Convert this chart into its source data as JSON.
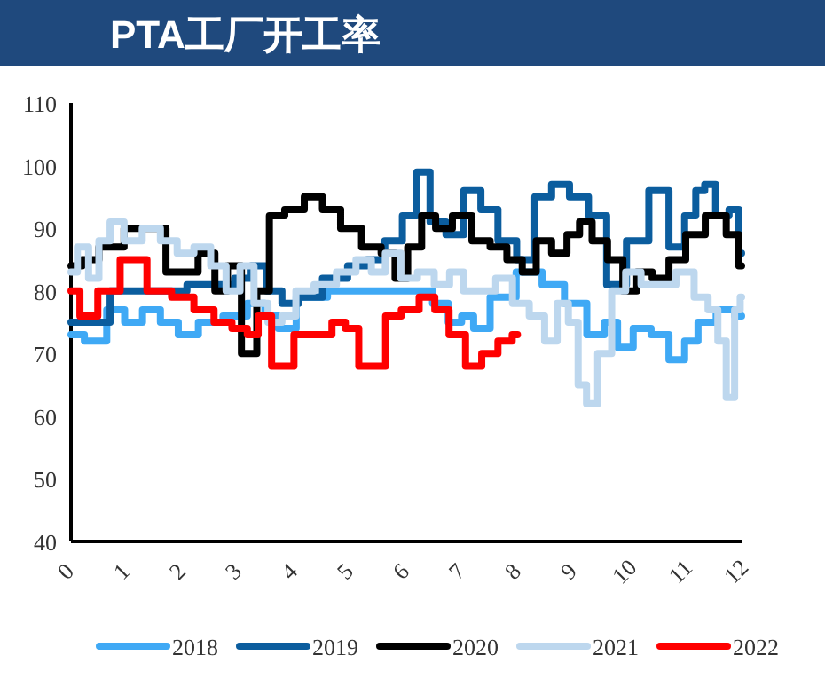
{
  "chart_data": {
    "type": "step",
    "title": "PTA工厂开工率",
    "xlim": [
      0,
      12
    ],
    "xticks": [
      0,
      1,
      2,
      3,
      4,
      5,
      6,
      7,
      8,
      9,
      10,
      11,
      12
    ],
    "ylim": [
      40,
      110
    ],
    "yticks": [
      40,
      50,
      60,
      70,
      80,
      90,
      100,
      110
    ],
    "grid": false,
    "legend": "bottom",
    "series": [
      {
        "name": "2018",
        "color": "#3fa9f5",
        "x": [
          0,
          0.48,
          0.8,
          1.12,
          1.44,
          1.76,
          2.08,
          2.48,
          2.96,
          3.35,
          3.59,
          3.83,
          4.23,
          4.95,
          5.75,
          6.31,
          6.63,
          6.87,
          7.11,
          7.3,
          7.7,
          8.23,
          8.63,
          9.03,
          9.43,
          9.66,
          9.9,
          10.22,
          10.54,
          10.86,
          11.1,
          11.34,
          11.75,
          12
        ],
        "values": [
          73,
          72,
          77,
          75,
          77,
          75,
          73,
          75,
          76,
          78,
          76,
          74,
          79,
          80,
          80,
          80,
          78,
          75,
          76,
          74,
          79,
          83,
          81,
          78,
          73,
          75,
          71,
          74,
          73,
          69,
          72,
          75,
          77,
          76
        ]
      },
      {
        "name": "2019",
        "color": "#0b5d9e",
        "x": [
          0,
          1.4,
          2.75,
          3.1,
          3.35,
          3.65,
          3.9,
          4.25,
          4.75,
          5.15,
          5.45,
          5.78,
          6.08,
          6.3,
          6.55,
          6.87,
          7.19,
          7.48,
          7.8,
          8.15,
          8.45,
          8.75,
          9.09,
          9.43,
          9.74,
          10.14,
          10.54,
          10.86,
          11.1,
          11.26,
          11.42,
          11.65,
          11.9,
          12
        ],
        "values": [
          75,
          80,
          81,
          82,
          84,
          80,
          78,
          79,
          82,
          84,
          85,
          88,
          92,
          99,
          91,
          89,
          96,
          93,
          88,
          85,
          95,
          97,
          95,
          92,
          81,
          88,
          96,
          87,
          92,
          96,
          97,
          92,
          93,
          86
        ]
      },
      {
        "name": "2020",
        "color": "#000000",
        "x": [
          0,
          0.4,
          0.6,
          1.3,
          2.1,
          2.45,
          2.7,
          2.9,
          3.2,
          3.45,
          3.65,
          4.0,
          4.35,
          4.65,
          5.0,
          5.4,
          5.7,
          5.9,
          6.15,
          6.4,
          6.65,
          7.0,
          7.35,
          7.65,
          7.95,
          8.2,
          8.45,
          8.75,
          9.0,
          9.2,
          9.45,
          9.75,
          10.0,
          10.25,
          10.55,
          10.85,
          11.15,
          11.55,
          11.9,
          12
        ],
        "values": [
          84,
          85,
          87,
          90,
          83,
          86,
          80,
          84,
          70,
          80,
          92,
          93,
          95,
          93,
          90,
          87,
          86,
          82,
          87,
          92,
          90,
          92,
          88,
          87,
          85,
          83,
          88,
          86,
          89,
          91,
          88,
          85,
          80,
          83,
          82,
          85,
          89,
          92,
          89,
          84
        ]
      },
      {
        "name": "2021",
        "color": "#bdd7ee",
        "x": [
          0,
          0.23,
          0.4,
          0.6,
          0.8,
          1.1,
          1.45,
          1.75,
          2.05,
          2.35,
          2.65,
          2.9,
          3.15,
          3.4,
          3.65,
          3.9,
          4.15,
          4.55,
          4.95,
          5.25,
          5.5,
          5.75,
          6.05,
          6.35,
          6.65,
          6.9,
          7.15,
          7.45,
          7.75,
          8.05,
          8.35,
          8.6,
          8.8,
          9.0,
          9.15,
          9.3,
          9.55,
          9.8,
          10.05,
          10.35,
          10.65,
          11.0,
          11.3,
          11.5,
          11.65,
          11.8,
          11.95,
          12
        ],
        "values": [
          83,
          87,
          82,
          88,
          91,
          88,
          90,
          88,
          86,
          87,
          84,
          80,
          84,
          78,
          75,
          76,
          80,
          81,
          83,
          85,
          83,
          86,
          82,
          83,
          81,
          83,
          80,
          80,
          82,
          78,
          76,
          72,
          78,
          75,
          65,
          62,
          70,
          80,
          83,
          81,
          81,
          83,
          79,
          77,
          72,
          63,
          77,
          79
        ]
      },
      {
        "name": "2022",
        "color": "#ff0000",
        "x": [
          0,
          0.32,
          0.64,
          1.12,
          1.6,
          2.0,
          2.4,
          2.72,
          3.04,
          3.27,
          3.43,
          3.75,
          4.23,
          4.55,
          4.79,
          5.03,
          5.27,
          5.51,
          5.75,
          6.07,
          6.39,
          6.63,
          6.9,
          7.22,
          7.48,
          7.8,
          7.99
        ],
        "values": [
          80,
          76,
          80,
          85,
          80,
          79,
          77,
          75,
          74,
          73,
          76,
          68,
          73,
          73,
          75,
          74,
          68,
          68,
          76,
          77,
          79,
          77,
          73,
          68,
          70,
          72,
          73
        ]
      }
    ]
  }
}
